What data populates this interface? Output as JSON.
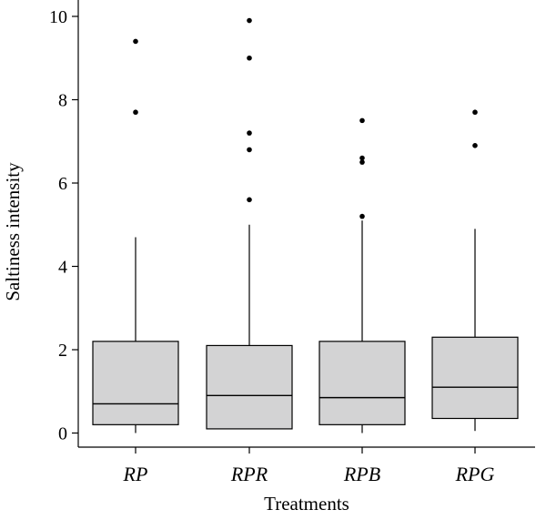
{
  "chart_data": {
    "type": "boxplot",
    "xlabel": "Treatments",
    "ylabel": "Saltiness intensity",
    "ylim": [
      0,
      10
    ],
    "yticks": [
      0,
      2,
      4,
      6,
      8,
      10
    ],
    "grid": false,
    "categories": [
      "RP",
      "RPR",
      "RPB",
      "RPG"
    ],
    "boxes": [
      {
        "category": "RP",
        "min": 0,
        "q1": 0.2,
        "median": 0.7,
        "q3": 2.2,
        "max": 4.7,
        "outliers": [
          7.7,
          9.4
        ]
      },
      {
        "category": "RPR",
        "min": 0.1,
        "q1": 0.1,
        "median": 0.9,
        "q3": 2.1,
        "max": 5.0,
        "outliers": [
          5.6,
          6.8,
          7.2,
          9.0,
          9.9
        ]
      },
      {
        "category": "RPB",
        "min": 0,
        "q1": 0.2,
        "median": 0.85,
        "q3": 2.2,
        "max": 5.1,
        "outliers": [
          5.2,
          6.5,
          6.6,
          7.5
        ]
      },
      {
        "category": "RPG",
        "min": 0.05,
        "q1": 0.35,
        "median": 1.1,
        "q3": 2.3,
        "max": 4.9,
        "outliers": [
          6.9,
          7.7
        ]
      }
    ]
  }
}
